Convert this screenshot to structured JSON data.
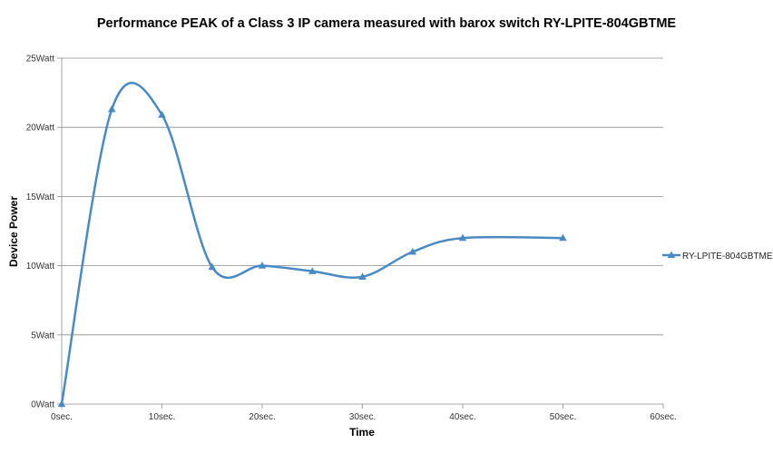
{
  "chart_data": {
    "type": "line",
    "title": "Performance PEAK of a Class 3 IP camera measured with barox switch RY-LPITE-804GBTME",
    "xlabel": "Time",
    "ylabel": "Device Power",
    "x_ticks": [
      "0sec.",
      "10sec.",
      "20sec.",
      "30sec.",
      "40sec.",
      "50sec.",
      "60sec."
    ],
    "y_ticks": [
      "0Watt",
      "5Watt",
      "10Watt",
      "15Watt",
      "20Watt",
      "25Watt"
    ],
    "xlim": [
      0,
      60
    ],
    "ylim": [
      0,
      25
    ],
    "grid": "horizontal",
    "legend_position": "right",
    "series": [
      {
        "name": "RY-LPITE-804GBTME",
        "color": "#4a8ac4",
        "marker": "triangle",
        "smooth": true,
        "x": [
          0,
          5,
          10,
          15,
          20,
          25,
          30,
          35,
          40,
          50
        ],
        "y": [
          0,
          21.3,
          20.9,
          9.9,
          10.0,
          9.6,
          9.2,
          11.0,
          12.0,
          12.0
        ]
      }
    ]
  }
}
